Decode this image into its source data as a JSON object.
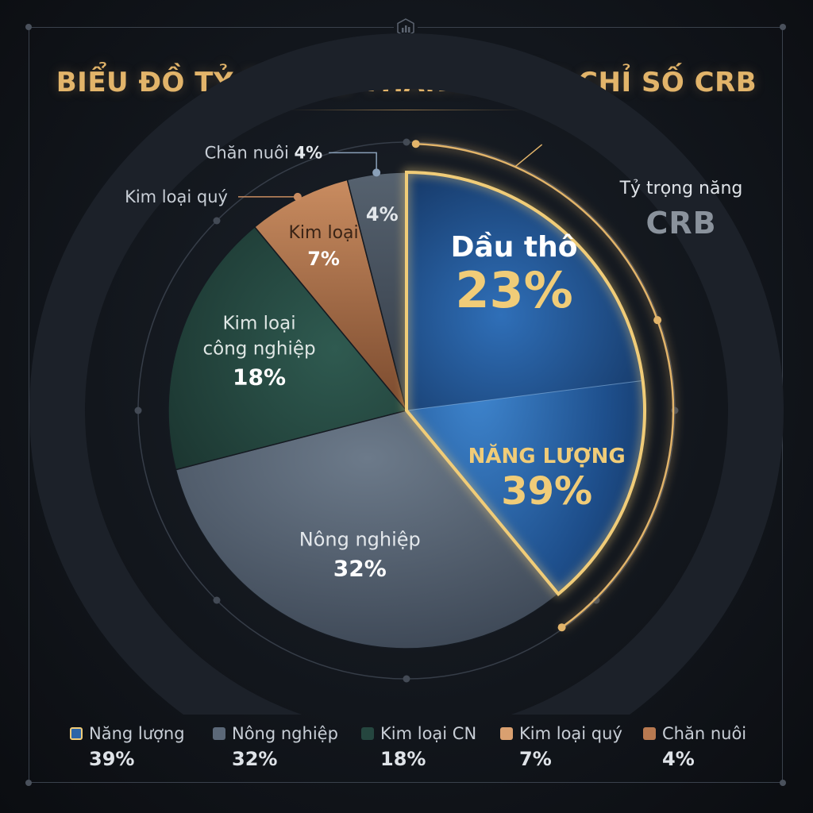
{
  "title": "BIỂU ĐỒ TỶ TRỌNG THÀNH PHẦN CHỈ SỐ CRB",
  "colors": {
    "title": "#e2b46a",
    "energy": "#2c65a8",
    "agriculture": "#5b6878",
    "industrial_metals": "#25463f",
    "precious_metals": "#b87950",
    "livestock": "#4b5665",
    "highlight": "#f0cc78"
  },
  "chart_data": {
    "type": "pie",
    "title": "BIỂU ĐỒ TỶ TRỌNG THÀNH PHẦN CHỈ SỐ CRB",
    "slices": [
      {
        "label": "Năng lượng",
        "display_label": "NĂNG LƯỢNG",
        "value": 39,
        "value_label": "39%"
      },
      {
        "label": "Nông nghiệp",
        "display_label": "Nông nghiệp",
        "value": 32,
        "value_label": "32%"
      },
      {
        "label": "Kim loại công nghiệp",
        "display_label": "Kim loại công nghiệp",
        "value": 18,
        "value_label": "18%"
      },
      {
        "label": "Kim loại quý",
        "display_label": "Kim loại",
        "value": 7,
        "value_label": "7%"
      },
      {
        "label": "Chăn nuôi",
        "display_label": "",
        "value": 4,
        "value_label": "4%"
      }
    ],
    "sub_slice": {
      "parent": "Năng lượng",
      "label": "Dầu thô",
      "value": 23,
      "value_label": "23%"
    },
    "callouts": [
      {
        "text": "Chăn nuôi",
        "value_text": "4%"
      },
      {
        "text": "Kim loại quý"
      },
      {
        "text": "Tỷ trọng năng"
      }
    ],
    "watermark": "CRB",
    "legend_position": "bottom"
  },
  "legend": [
    {
      "label": "Năng lượng",
      "value": "39%"
    },
    {
      "label": "Nông nghiệp",
      "value": "32%"
    },
    {
      "label": "Kim loại CN",
      "value": "18%"
    },
    {
      "label": "Kim loại quý",
      "value": "7%"
    },
    {
      "label": "Chăn nuôi",
      "value": "4%"
    }
  ]
}
